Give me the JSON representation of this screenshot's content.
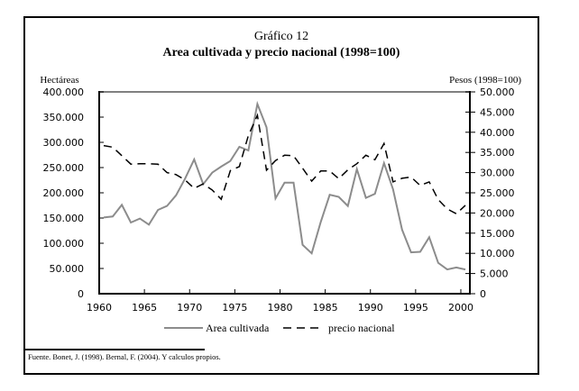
{
  "chart_data": {
    "type": "line",
    "title": "Gráfico 12",
    "subtitle": "Area cultivada y precio nacional (1998=100)",
    "left_axis_label": "Hectáreas",
    "right_axis_label": "Pesos (1998=100)",
    "xlabel": "",
    "x_tick_labels": [
      "1960",
      "1965",
      "1970",
      "1975",
      "1980",
      "1985",
      "1990",
      "1995",
      "2000"
    ],
    "x_ticks": [
      1960,
      1965,
      1970,
      1975,
      1980,
      1985,
      1990,
      1995,
      2000
    ],
    "left_tick_labels": [
      "0",
      "50.000",
      "100.000",
      "150.000",
      "200.000",
      "250.000",
      "300.000",
      "350.000",
      "400.000"
    ],
    "left_ticks": [
      0,
      50000,
      100000,
      150000,
      200000,
      250000,
      300000,
      350000,
      400000
    ],
    "right_tick_labels": [
      "0",
      "5.000",
      "10.000",
      "15.000",
      "20.000",
      "25.000",
      "30.000",
      "35.000",
      "40.000",
      "45.000",
      "50.000"
    ],
    "right_ticks": [
      0,
      5000,
      10000,
      15000,
      20000,
      25000,
      30000,
      35000,
      40000,
      45000,
      50000
    ],
    "ylim_left": [
      0,
      400000
    ],
    "ylim_right": [
      0,
      50000
    ],
    "xlim": [
      1960,
      2000
    ],
    "grid": false,
    "legend_position": "bottom",
    "x": [
      1960,
      1961,
      1962,
      1963,
      1964,
      1965,
      1966,
      1967,
      1968,
      1969,
      1970,
      1971,
      1972,
      1973,
      1974,
      1975,
      1976,
      1977,
      1978,
      1979,
      1980,
      1981,
      1982,
      1983,
      1984,
      1985,
      1986,
      1987,
      1988,
      1989,
      1990,
      1991,
      1992,
      1993,
      1994,
      1995,
      1996,
      1997,
      1998,
      1999,
      2000
    ],
    "series": [
      {
        "name": "Area cultivada",
        "axis": "left",
        "style": "solid",
        "color": "#8c8c8c",
        "values": [
          151000,
          153000,
          176000,
          141000,
          149000,
          137000,
          166000,
          174000,
          195000,
          228000,
          266000,
          217000,
          240000,
          252000,
          263000,
          291000,
          284000,
          376000,
          330000,
          189000,
          220000,
          220000,
          97000,
          80000,
          142000,
          196000,
          192000,
          174000,
          247000,
          190000,
          198000,
          259000,
          207000,
          127000,
          82000,
          83000,
          112000,
          61000,
          48000,
          52000,
          48000
        ]
      },
      {
        "name": "precio nacional",
        "axis": "right",
        "style": "dashed",
        "color": "#000000",
        "values": [
          36700,
          36300,
          34200,
          32100,
          32200,
          32200,
          32100,
          30000,
          29500,
          28200,
          26100,
          27200,
          25700,
          23400,
          30500,
          31500,
          39200,
          44200,
          30600,
          33000,
          34300,
          34200,
          31100,
          27900,
          30400,
          30400,
          28500,
          30700,
          32200,
          34300,
          33200,
          37200,
          27700,
          28600,
          28900,
          26800,
          27700,
          23300,
          21000,
          19800,
          21900
        ]
      }
    ]
  },
  "legend": {
    "items": [
      "Area cultivada",
      "precio nacional"
    ]
  },
  "source": "Fuente. Bonet, J. (1998). Bernal, F. (2004). Y calculos propios."
}
